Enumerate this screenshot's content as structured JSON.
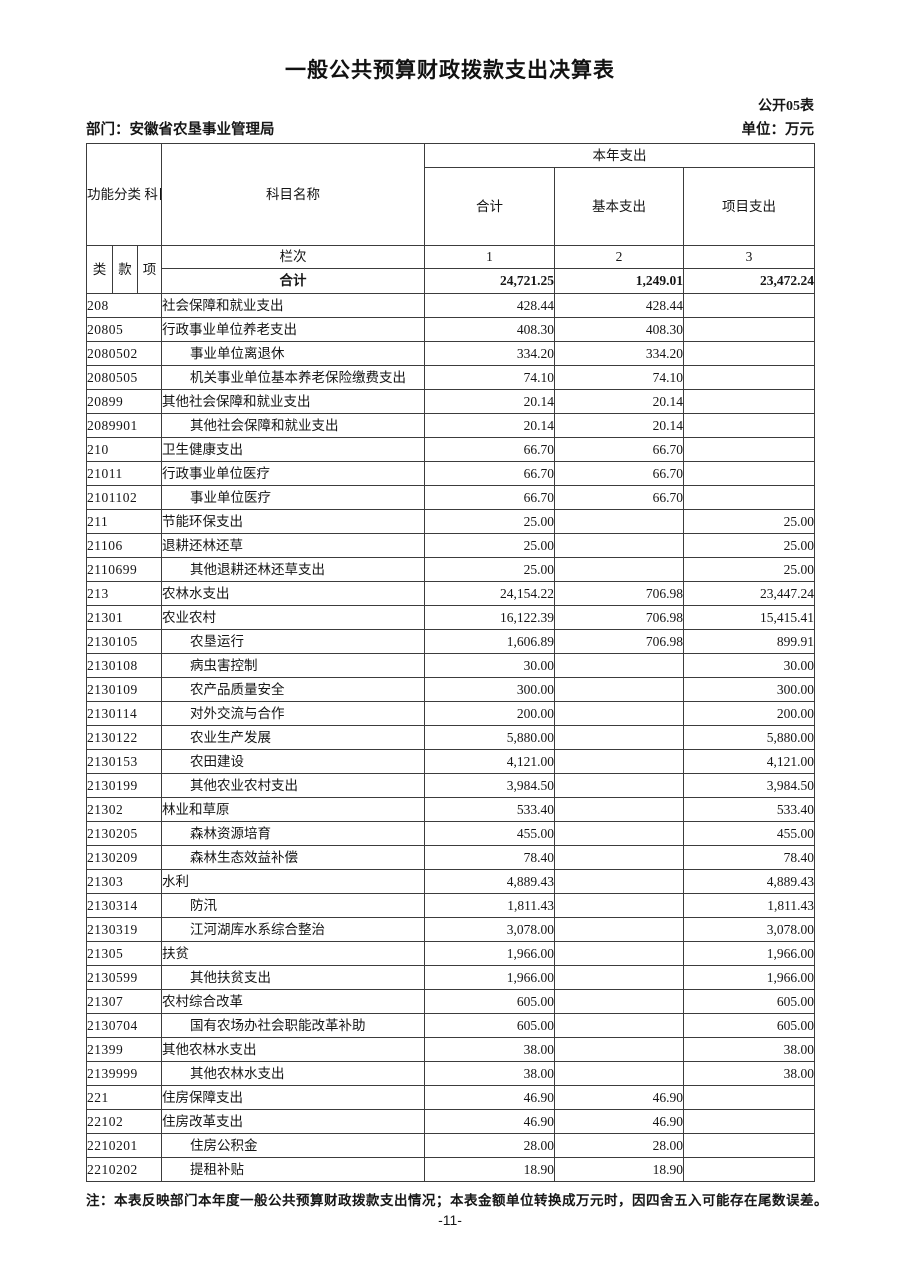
{
  "page": {
    "title": "一般公共预算财政拨款支出决算表",
    "form_code": "公开05表",
    "department": "部门：安徽省农垦事业管理局",
    "unit": "单位：万元",
    "note": "注：本表反映部门本年度一般公共预算财政拨款支出情况；本表金额单位转换成万元时，因四舍五入可能存在尾数误差。",
    "page_number": "-11-"
  },
  "table": {
    "header": {
      "code_header": "功能分类\n科目编码",
      "subject_name": "科目名称",
      "current_year": "本年支出",
      "columns": [
        "合计",
        "基本支出",
        "项目支出"
      ],
      "code_parts": [
        "类",
        "款",
        "项"
      ],
      "row_index_label": "栏次",
      "col_indexes": [
        "1",
        "2",
        "3"
      ],
      "grand_total_label": "合计",
      "grand_total": {
        "total": "24,721.25",
        "basic": "1,249.01",
        "project": "23,472.24"
      }
    },
    "rows": [
      {
        "code": "208",
        "name": "社会保障和就业支出",
        "indent": false,
        "total": "428.44",
        "basic": "428.44",
        "project": ""
      },
      {
        "code": "20805",
        "name": "行政事业单位养老支出",
        "indent": false,
        "total": "408.30",
        "basic": "408.30",
        "project": ""
      },
      {
        "code": "2080502",
        "name": "事业单位离退休",
        "indent": true,
        "total": "334.20",
        "basic": "334.20",
        "project": ""
      },
      {
        "code": "2080505",
        "name": "机关事业单位基本养老保险缴费支出",
        "indent": true,
        "total": "74.10",
        "basic": "74.10",
        "project": ""
      },
      {
        "code": "20899",
        "name": "其他社会保障和就业支出",
        "indent": false,
        "total": "20.14",
        "basic": "20.14",
        "project": ""
      },
      {
        "code": "2089901",
        "name": "其他社会保障和就业支出",
        "indent": true,
        "total": "20.14",
        "basic": "20.14",
        "project": ""
      },
      {
        "code": "210",
        "name": "卫生健康支出",
        "indent": false,
        "total": "66.70",
        "basic": "66.70",
        "project": ""
      },
      {
        "code": "21011",
        "name": "行政事业单位医疗",
        "indent": false,
        "total": "66.70",
        "basic": "66.70",
        "project": ""
      },
      {
        "code": "2101102",
        "name": "事业单位医疗",
        "indent": true,
        "total": "66.70",
        "basic": "66.70",
        "project": ""
      },
      {
        "code": "211",
        "name": "节能环保支出",
        "indent": false,
        "total": "25.00",
        "basic": "",
        "project": "25.00"
      },
      {
        "code": "21106",
        "name": "退耕还林还草",
        "indent": false,
        "total": "25.00",
        "basic": "",
        "project": "25.00"
      },
      {
        "code": "2110699",
        "name": "其他退耕还林还草支出",
        "indent": true,
        "total": "25.00",
        "basic": "",
        "project": "25.00"
      },
      {
        "code": "213",
        "name": "农林水支出",
        "indent": false,
        "total": "24,154.22",
        "basic": "706.98",
        "project": "23,447.24"
      },
      {
        "code": "21301",
        "name": "农业农村",
        "indent": false,
        "total": "16,122.39",
        "basic": "706.98",
        "project": "15,415.41"
      },
      {
        "code": "2130105",
        "name": "农垦运行",
        "indent": true,
        "total": "1,606.89",
        "basic": "706.98",
        "project": "899.91"
      },
      {
        "code": "2130108",
        "name": "病虫害控制",
        "indent": true,
        "total": "30.00",
        "basic": "",
        "project": "30.00"
      },
      {
        "code": "2130109",
        "name": "农产品质量安全",
        "indent": true,
        "total": "300.00",
        "basic": "",
        "project": "300.00"
      },
      {
        "code": "2130114",
        "name": "对外交流与合作",
        "indent": true,
        "total": "200.00",
        "basic": "",
        "project": "200.00"
      },
      {
        "code": "2130122",
        "name": "农业生产发展",
        "indent": true,
        "total": "5,880.00",
        "basic": "",
        "project": "5,880.00"
      },
      {
        "code": "2130153",
        "name": "农田建设",
        "indent": true,
        "total": "4,121.00",
        "basic": "",
        "project": "4,121.00"
      },
      {
        "code": "2130199",
        "name": "其他农业农村支出",
        "indent": true,
        "total": "3,984.50",
        "basic": "",
        "project": "3,984.50"
      },
      {
        "code": "21302",
        "name": "林业和草原",
        "indent": false,
        "total": "533.40",
        "basic": "",
        "project": "533.40"
      },
      {
        "code": "2130205",
        "name": "森林资源培育",
        "indent": true,
        "total": "455.00",
        "basic": "",
        "project": "455.00"
      },
      {
        "code": "2130209",
        "name": "森林生态效益补偿",
        "indent": true,
        "total": "78.40",
        "basic": "",
        "project": "78.40"
      },
      {
        "code": "21303",
        "name": "水利",
        "indent": false,
        "total": "4,889.43",
        "basic": "",
        "project": "4,889.43"
      },
      {
        "code": "2130314",
        "name": "防汛",
        "indent": true,
        "total": "1,811.43",
        "basic": "",
        "project": "1,811.43"
      },
      {
        "code": "2130319",
        "name": "江河湖库水系综合整治",
        "indent": true,
        "total": "3,078.00",
        "basic": "",
        "project": "3,078.00"
      },
      {
        "code": "21305",
        "name": "扶贫",
        "indent": false,
        "total": "1,966.00",
        "basic": "",
        "project": "1,966.00"
      },
      {
        "code": "2130599",
        "name": "其他扶贫支出",
        "indent": true,
        "total": "1,966.00",
        "basic": "",
        "project": "1,966.00"
      },
      {
        "code": "21307",
        "name": "农村综合改革",
        "indent": false,
        "total": "605.00",
        "basic": "",
        "project": "605.00"
      },
      {
        "code": "2130704",
        "name": "国有农场办社会职能改革补助",
        "indent": true,
        "total": "605.00",
        "basic": "",
        "project": "605.00"
      },
      {
        "code": "21399",
        "name": "其他农林水支出",
        "indent": false,
        "total": "38.00",
        "basic": "",
        "project": "38.00"
      },
      {
        "code": "2139999",
        "name": "其他农林水支出",
        "indent": true,
        "total": "38.00",
        "basic": "",
        "project": "38.00"
      },
      {
        "code": "221",
        "name": "住房保障支出",
        "indent": false,
        "total": "46.90",
        "basic": "46.90",
        "project": ""
      },
      {
        "code": "22102",
        "name": "住房改革支出",
        "indent": false,
        "total": "46.90",
        "basic": "46.90",
        "project": ""
      },
      {
        "code": "2210201",
        "name": "住房公积金",
        "indent": true,
        "total": "28.00",
        "basic": "28.00",
        "project": ""
      },
      {
        "code": "2210202",
        "name": "提租补贴",
        "indent": true,
        "total": "18.90",
        "basic": "18.90",
        "project": ""
      }
    ]
  }
}
